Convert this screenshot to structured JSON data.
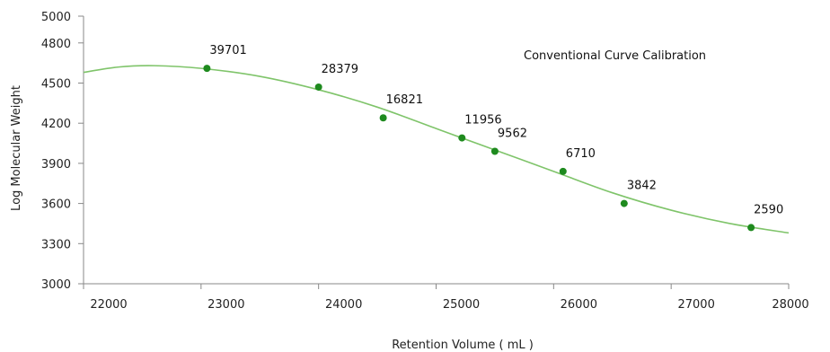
{
  "chart_data": {
    "type": "scatter",
    "title": "Conventional Curve Calibration",
    "xlabel": "Retention Volume ( mL )",
    "ylabel": "Log Molecular Weight",
    "xlim": [
      22000,
      28000
    ],
    "ylim": [
      3000,
      5000
    ],
    "x_ticks": [
      22000,
      23000,
      24000,
      25000,
      26000,
      27000,
      28000
    ],
    "y_ticks": [
      3000,
      3300,
      3600,
      3900,
      4200,
      4500,
      4800,
      5000
    ],
    "grid": false,
    "marker_color": "#1e8a1e",
    "curve_color": "#7fc46a",
    "points": [
      {
        "x": 23050,
        "y": 4610,
        "label": "39701"
      },
      {
        "x": 24000,
        "y": 4470,
        "label": "28379"
      },
      {
        "x": 24550,
        "y": 4240,
        "label": "16821"
      },
      {
        "x": 25220,
        "y": 4090,
        "label": "11956"
      },
      {
        "x": 25500,
        "y": 3990,
        "label": "9562"
      },
      {
        "x": 26080,
        "y": 3840,
        "label": "6710"
      },
      {
        "x": 26600,
        "y": 3600,
        "label": "3842"
      },
      {
        "x": 27680,
        "y": 3420,
        "label": "2590"
      }
    ],
    "curve": {
      "x": [
        22000,
        22300,
        22600,
        23000,
        23500,
        24000,
        24500,
        25000,
        25500,
        26000,
        26500,
        27000,
        27500,
        28000
      ],
      "y": [
        4580,
        4620,
        4630,
        4610,
        4550,
        4450,
        4320,
        4160,
        4000,
        3840,
        3680,
        3550,
        3450,
        3380
      ]
    }
  }
}
